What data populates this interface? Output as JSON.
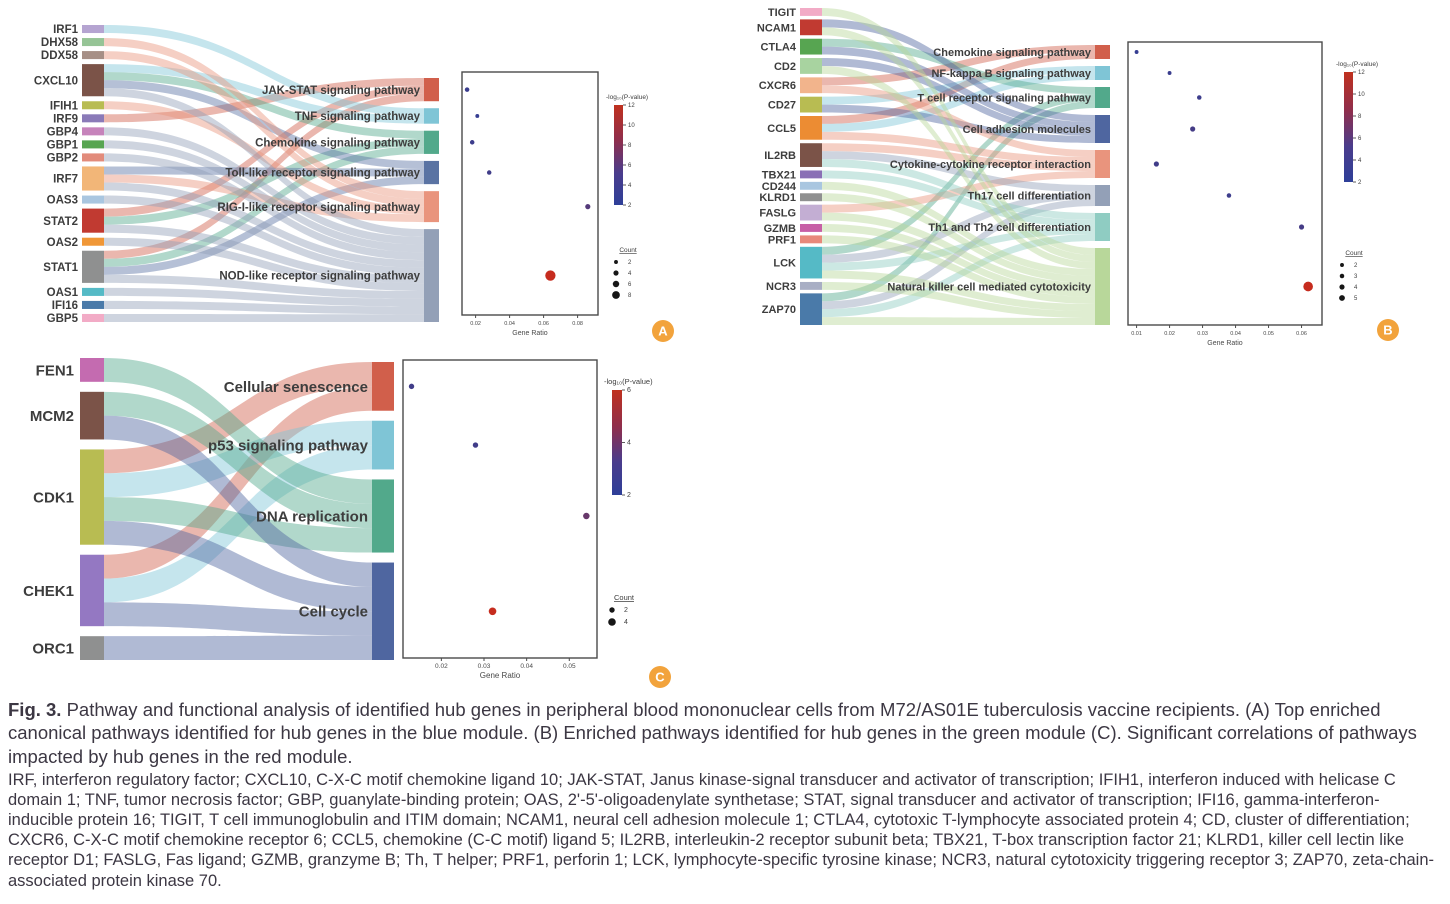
{
  "caption": {
    "fig_label": "Fig. 3.",
    "main": "Pathway and functional analysis of identified hub genes in peripheral blood mononuclear cells from M72/AS01E tuberculosis vaccine recipients. (A) Top enriched canonical pathways identified for hub genes in the blue module. (B) Enriched pathways identified for hub genes in the green module (C). Significant correlations of pathways impacted by hub genes in the red module.",
    "abbreviations": "IRF, interferon regulatory factor; CXCL10, C-X-C motif chemokine ligand 10; JAK-STAT, Janus kinase-signal transducer and activator of transcription; IFIH1, interferon induced with helicase C domain 1; TNF, tumor necrosis factor; GBP, guanylate-binding protein; OAS, 2'-5'-oligoadenylate synthetase; STAT, signal transducer and activator of transcription; IFI16, gamma-interferon-inducible protein 16; TIGIT, T cell immunoglobulin and ITIM domain; NCAM1, neural cell adhesion molecule 1; CTLA4, cytotoxic T-lymphocyte associated protein 4; CD, cluster of differentiation; CXCR6, C-X-C motif chemokine receptor 6; CCL5, chemokine (C-C motif) ligand 5; IL2RB, interleukin-2 receptor subunit beta; TBX21, T-box transcription factor 21; KLRD1, killer cell lectin like receptor D1; FASLG, Fas ligand; GZMB, granzyme B; Th, T helper; PRF1, perforin 1; LCK, lymphocyte-specific tyrosine kinase; NCR3, natural cytotoxicity triggering receptor 3; ZAP70, zeta-chain-associated protein kinase 70.",
    "panel_marker_color": "#f2a33c"
  },
  "chart_data": [
    {
      "id": "A",
      "type": "sankey+dotplot",
      "marker": "A",
      "genes": [
        {
          "name": "IRF1",
          "color": "#b5a4d1"
        },
        {
          "name": "DHX58",
          "color": "#96c496"
        },
        {
          "name": "DDX58",
          "color": "#a68f86"
        },
        {
          "name": "CXCL10",
          "color": "#7b5348"
        },
        {
          "name": "IFIH1",
          "color": "#b8bc52"
        },
        {
          "name": "IRF9",
          "color": "#8a7ab8"
        },
        {
          "name": "GBP4",
          "color": "#c683bb"
        },
        {
          "name": "GBP1",
          "color": "#57a551"
        },
        {
          "name": "GBP2",
          "color": "#e28b7b"
        },
        {
          "name": "IRF7",
          "color": "#f2b678"
        },
        {
          "name": "OAS3",
          "color": "#a9c6e0"
        },
        {
          "name": "STAT2",
          "color": "#c13a31"
        },
        {
          "name": "OAS2",
          "color": "#f09737"
        },
        {
          "name": "STAT1",
          "color": "#8f9090"
        },
        {
          "name": "OAS1",
          "color": "#55bac6"
        },
        {
          "name": "IFI16",
          "color": "#4a7aa9"
        },
        {
          "name": "GBP5",
          "color": "#f2abc6"
        }
      ],
      "pathways": [
        {
          "name": "JAK-STAT signaling pathway",
          "color": "#d15f4b"
        },
        {
          "name": "TNF signaling pathway",
          "color": "#7fc5d6"
        },
        {
          "name": "Chemokine signaling pathway",
          "color": "#52a98b"
        },
        {
          "name": "Toll-like receptor signaling pathway",
          "color": "#5a73a3"
        },
        {
          "name": "RIG-I-like receptor signaling pathway",
          "color": "#e9947d"
        },
        {
          "name": "NOD-like receptor signaling pathway",
          "color": "#93a0b7"
        }
      ],
      "links": [
        [
          "IRF9",
          "JAK-STAT signaling pathway"
        ],
        [
          "STAT1",
          "JAK-STAT signaling pathway"
        ],
        [
          "STAT2",
          "JAK-STAT signaling pathway"
        ],
        [
          "IRF1",
          "TNF signaling pathway"
        ],
        [
          "CXCL10",
          "TNF signaling pathway"
        ],
        [
          "CXCL10",
          "Chemokine signaling pathway"
        ],
        [
          "STAT1",
          "Chemokine signaling pathway"
        ],
        [
          "STAT2",
          "Chemokine signaling pathway"
        ],
        [
          "CXCL10",
          "Toll-like receptor signaling pathway"
        ],
        [
          "IRF7",
          "Toll-like receptor signaling pathway"
        ],
        [
          "STAT1",
          "Toll-like receptor signaling pathway"
        ],
        [
          "DHX58",
          "RIG-I-like receptor signaling pathway"
        ],
        [
          "DDX58",
          "RIG-I-like receptor signaling pathway"
        ],
        [
          "IFIH1",
          "RIG-I-like receptor signaling pathway"
        ],
        [
          "IRF7",
          "RIG-I-like receptor signaling pathway"
        ],
        [
          "CXCL10",
          "NOD-like receptor signaling pathway"
        ],
        [
          "GBP1",
          "NOD-like receptor signaling pathway"
        ],
        [
          "GBP2",
          "NOD-like receptor signaling pathway"
        ],
        [
          "GBP4",
          "NOD-like receptor signaling pathway"
        ],
        [
          "GBP5",
          "NOD-like receptor signaling pathway"
        ],
        [
          "OAS1",
          "NOD-like receptor signaling pathway"
        ],
        [
          "OAS2",
          "NOD-like receptor signaling pathway"
        ],
        [
          "OAS3",
          "NOD-like receptor signaling pathway"
        ],
        [
          "STAT1",
          "NOD-like receptor signaling pathway"
        ],
        [
          "STAT2",
          "NOD-like receptor signaling pathway"
        ],
        [
          "IFI16",
          "NOD-like receptor signaling pathway"
        ],
        [
          "IRF7",
          "NOD-like receptor signaling pathway"
        ]
      ],
      "dotplot": {
        "xlabel": "Gene Ratio",
        "xticks": [
          "0.02",
          "0.04",
          "0.06",
          "0.08"
        ],
        "xdomain": [
          0.012,
          0.092
        ],
        "rows": [
          {
            "pathway": "JAK-STAT signaling pathway",
            "gene_ratio": 0.015,
            "count": 3,
            "neg_log10_pvalue": 2.8
          },
          {
            "pathway": "TNF signaling pathway",
            "gene_ratio": 0.021,
            "count": 2,
            "neg_log10_pvalue": 2.5
          },
          {
            "pathway": "Chemokine signaling pathway",
            "gene_ratio": 0.018,
            "count": 3,
            "neg_log10_pvalue": 3.0
          },
          {
            "pathway": "Toll-like receptor signaling pathway",
            "gene_ratio": 0.028,
            "count": 3,
            "neg_log10_pvalue": 3.2
          },
          {
            "pathway": "RIG-I-like receptor signaling pathway",
            "gene_ratio": 0.086,
            "count": 4,
            "neg_log10_pvalue": 4.5
          },
          {
            "pathway": "NOD-like receptor signaling pathway",
            "gene_ratio": 0.064,
            "count": 12,
            "neg_log10_pvalue": 12
          }
        ]
      },
      "legend": {
        "color_title": "-log₁₀(P-value)",
        "color_ticks": [
          "12",
          "10",
          "8",
          "6",
          "4",
          "2"
        ],
        "color_range": [
          2,
          12
        ],
        "count_title": "Count",
        "count_items": [
          2,
          4,
          6,
          8
        ]
      }
    },
    {
      "id": "B",
      "type": "sankey+dotplot",
      "marker": "B",
      "genes": [
        {
          "name": "TIGIT",
          "color": "#f2abc6"
        },
        {
          "name": "NCAM1",
          "color": "#c13a31"
        },
        {
          "name": "CTLA4",
          "color": "#57a551"
        },
        {
          "name": "CD2",
          "color": "#a8d3a0"
        },
        {
          "name": "CXCR6",
          "color": "#f2b48c"
        },
        {
          "name": "CD27",
          "color": "#b8bc52"
        },
        {
          "name": "CCL5",
          "color": "#ec8c33"
        },
        {
          "name": "IL2RB",
          "color": "#7b5348"
        },
        {
          "name": "TBX21",
          "color": "#8a6fb5"
        },
        {
          "name": "CD244",
          "color": "#a9c6e0"
        },
        {
          "name": "KLRD1",
          "color": "#8f9090"
        },
        {
          "name": "FASLG",
          "color": "#c3aed3"
        },
        {
          "name": "GZMB",
          "color": "#c75fa6"
        },
        {
          "name": "PRF1",
          "color": "#e8897b"
        },
        {
          "name": "LCK",
          "color": "#55bac6"
        },
        {
          "name": "NCR3",
          "color": "#a8aec4"
        },
        {
          "name": "ZAP70",
          "color": "#4a7aa9"
        }
      ],
      "pathways": [
        {
          "name": "Chemokine signaling pathway",
          "color": "#d15f4b"
        },
        {
          "name": "NF-kappa B signaling pathway",
          "color": "#7fc5d6"
        },
        {
          "name": "T cell receptor signaling pathway",
          "color": "#52a98b"
        },
        {
          "name": "Cell adhesion molecules",
          "color": "#4f66a0"
        },
        {
          "name": "Cytokine-cytokine receptor interaction",
          "color": "#e9947d"
        },
        {
          "name": "Th17 cell differentiation",
          "color": "#93a0b7"
        },
        {
          "name": "Th1 and Th2 cell differentiation",
          "color": "#8fccc2"
        },
        {
          "name": "Natural killer cell mediated cytotoxicity",
          "color": "#b8d79a"
        }
      ],
      "links": [
        [
          "CXCR6",
          "Chemokine signaling pathway"
        ],
        [
          "CCL5",
          "Chemokine signaling pathway"
        ],
        [
          "CD27",
          "NF-kappa B signaling pathway"
        ],
        [
          "CCL5",
          "NF-kappa B signaling pathway"
        ],
        [
          "CTLA4",
          "T cell receptor signaling pathway"
        ],
        [
          "LCK",
          "T cell receptor signaling pathway"
        ],
        [
          "ZAP70",
          "T cell receptor signaling pathway"
        ],
        [
          "NCAM1",
          "Cell adhesion molecules"
        ],
        [
          "CTLA4",
          "Cell adhesion molecules"
        ],
        [
          "CD2",
          "Cell adhesion molecules"
        ],
        [
          "CD27",
          "Cell adhesion molecules"
        ],
        [
          "CXCR6",
          "Cytokine-cytokine receptor interaction"
        ],
        [
          "CCL5",
          "Cytokine-cytokine receptor interaction"
        ],
        [
          "IL2RB",
          "Cytokine-cytokine receptor interaction"
        ],
        [
          "FASLG",
          "Cytokine-cytokine receptor interaction"
        ],
        [
          "IL2RB",
          "Th17 cell differentiation"
        ],
        [
          "LCK",
          "Th17 cell differentiation"
        ],
        [
          "ZAP70",
          "Th17 cell differentiation"
        ],
        [
          "IL2RB",
          "Th1 and Th2 cell differentiation"
        ],
        [
          "TBX21",
          "Th1 and Th2 cell differentiation"
        ],
        [
          "LCK",
          "Th1 and Th2 cell differentiation"
        ],
        [
          "ZAP70",
          "Th1 and Th2 cell differentiation"
        ],
        [
          "TIGIT",
          "Natural killer cell mediated cytotoxicity"
        ],
        [
          "NCAM1",
          "Natural killer cell mediated cytotoxicity"
        ],
        [
          "CD2",
          "Natural killer cell mediated cytotoxicity"
        ],
        [
          "CD244",
          "Natural killer cell mediated cytotoxicity"
        ],
        [
          "KLRD1",
          "Natural killer cell mediated cytotoxicity"
        ],
        [
          "FASLG",
          "Natural killer cell mediated cytotoxicity"
        ],
        [
          "GZMB",
          "Natural killer cell mediated cytotoxicity"
        ],
        [
          "PRF1",
          "Natural killer cell mediated cytotoxicity"
        ],
        [
          "LCK",
          "Natural killer cell mediated cytotoxicity"
        ],
        [
          "NCR3",
          "Natural killer cell mediated cytotoxicity"
        ],
        [
          "ZAP70",
          "Natural killer cell mediated cytotoxicity"
        ]
      ],
      "dotplot": {
        "xlabel": "Gene Ratio",
        "xticks": [
          "0.01",
          "0.02",
          "0.03",
          "0.04",
          "0.05",
          "0.06"
        ],
        "xdomain": [
          0.0074,
          0.0662
        ],
        "rows": [
          {
            "pathway": "Chemokine signaling pathway",
            "gene_ratio": 0.01,
            "count": 2,
            "neg_log10_pvalue": 2.5
          },
          {
            "pathway": "NF-kappa B signaling pathway",
            "gene_ratio": 0.02,
            "count": 2,
            "neg_log10_pvalue": 2.8
          },
          {
            "pathway": "T cell receptor signaling pathway",
            "gene_ratio": 0.029,
            "count": 3,
            "neg_log10_pvalue": 3.0
          },
          {
            "pathway": "Cell adhesion molecules",
            "gene_ratio": 0.027,
            "count": 4,
            "neg_log10_pvalue": 3.5
          },
          {
            "pathway": "Cytokine-cytokine receptor interaction",
            "gene_ratio": 0.016,
            "count": 4,
            "neg_log10_pvalue": 3.2
          },
          {
            "pathway": "Th17 cell differentiation",
            "gene_ratio": 0.038,
            "count": 3,
            "neg_log10_pvalue": 3.0
          },
          {
            "pathway": "Th1 and Th2 cell differentiation",
            "gene_ratio": 0.06,
            "count": 4,
            "neg_log10_pvalue": 3.5
          },
          {
            "pathway": "Natural killer cell mediated cytotoxicity",
            "gene_ratio": 0.062,
            "count": 11,
            "neg_log10_pvalue": 12
          }
        ]
      },
      "legend": {
        "color_title": "-log₁₀(P-value)",
        "color_ticks": [
          "12",
          "10",
          "8",
          "6",
          "4",
          "2"
        ],
        "color_range": [
          2,
          12
        ],
        "count_title": "Count",
        "count_items": [
          2,
          3,
          4,
          5
        ]
      }
    },
    {
      "id": "C",
      "type": "sankey+dotplot",
      "marker": "C",
      "genes": [
        {
          "name": "FEN1",
          "color": "#c46bb0"
        },
        {
          "name": "MCM2",
          "color": "#7b5348"
        },
        {
          "name": "CDK1",
          "color": "#b8bc52"
        },
        {
          "name": "CHEK1",
          "color": "#9478c2"
        },
        {
          "name": "ORC1",
          "color": "#8f9090"
        }
      ],
      "pathways": [
        {
          "name": "Cellular senescence",
          "color": "#d15f4b"
        },
        {
          "name": "p53 signaling pathway",
          "color": "#7fc5d6"
        },
        {
          "name": "DNA replication",
          "color": "#52a98b"
        },
        {
          "name": "Cell cycle",
          "color": "#4f66a0"
        }
      ],
      "links": [
        [
          "CDK1",
          "Cellular senescence"
        ],
        [
          "CHEK1",
          "Cellular senescence"
        ],
        [
          "CDK1",
          "p53 signaling pathway"
        ],
        [
          "CHEK1",
          "p53 signaling pathway"
        ],
        [
          "FEN1",
          "DNA replication"
        ],
        [
          "MCM2",
          "DNA replication"
        ],
        [
          "CDK1",
          "DNA replication"
        ],
        [
          "MCM2",
          "Cell cycle"
        ],
        [
          "CDK1",
          "Cell cycle"
        ],
        [
          "CHEK1",
          "Cell cycle"
        ],
        [
          "ORC1",
          "Cell cycle"
        ]
      ],
      "dotplot": {
        "xlabel": "Gene Ratio",
        "xticks": [
          "0.02",
          "0.03",
          "0.04",
          "0.05"
        ],
        "xdomain": [
          0.011,
          0.0565
        ],
        "rows": [
          {
            "pathway": "Cellular senescence",
            "gene_ratio": 0.013,
            "count": 2,
            "neg_log10_pvalue": 2.5
          },
          {
            "pathway": "p53 signaling pathway",
            "gene_ratio": 0.028,
            "count": 2,
            "neg_log10_pvalue": 2.5
          },
          {
            "pathway": "DNA replication",
            "gene_ratio": 0.054,
            "count": 3,
            "neg_log10_pvalue": 3.5
          },
          {
            "pathway": "Cell cycle",
            "gene_ratio": 0.032,
            "count": 4,
            "neg_log10_pvalue": 6
          }
        ]
      },
      "legend": {
        "color_title": "-log₁₀(P-value)",
        "color_ticks": [
          "6",
          "4",
          "2"
        ],
        "color_range": [
          2,
          6
        ],
        "count_title": "Count",
        "count_items": [
          2,
          4
        ]
      }
    }
  ]
}
